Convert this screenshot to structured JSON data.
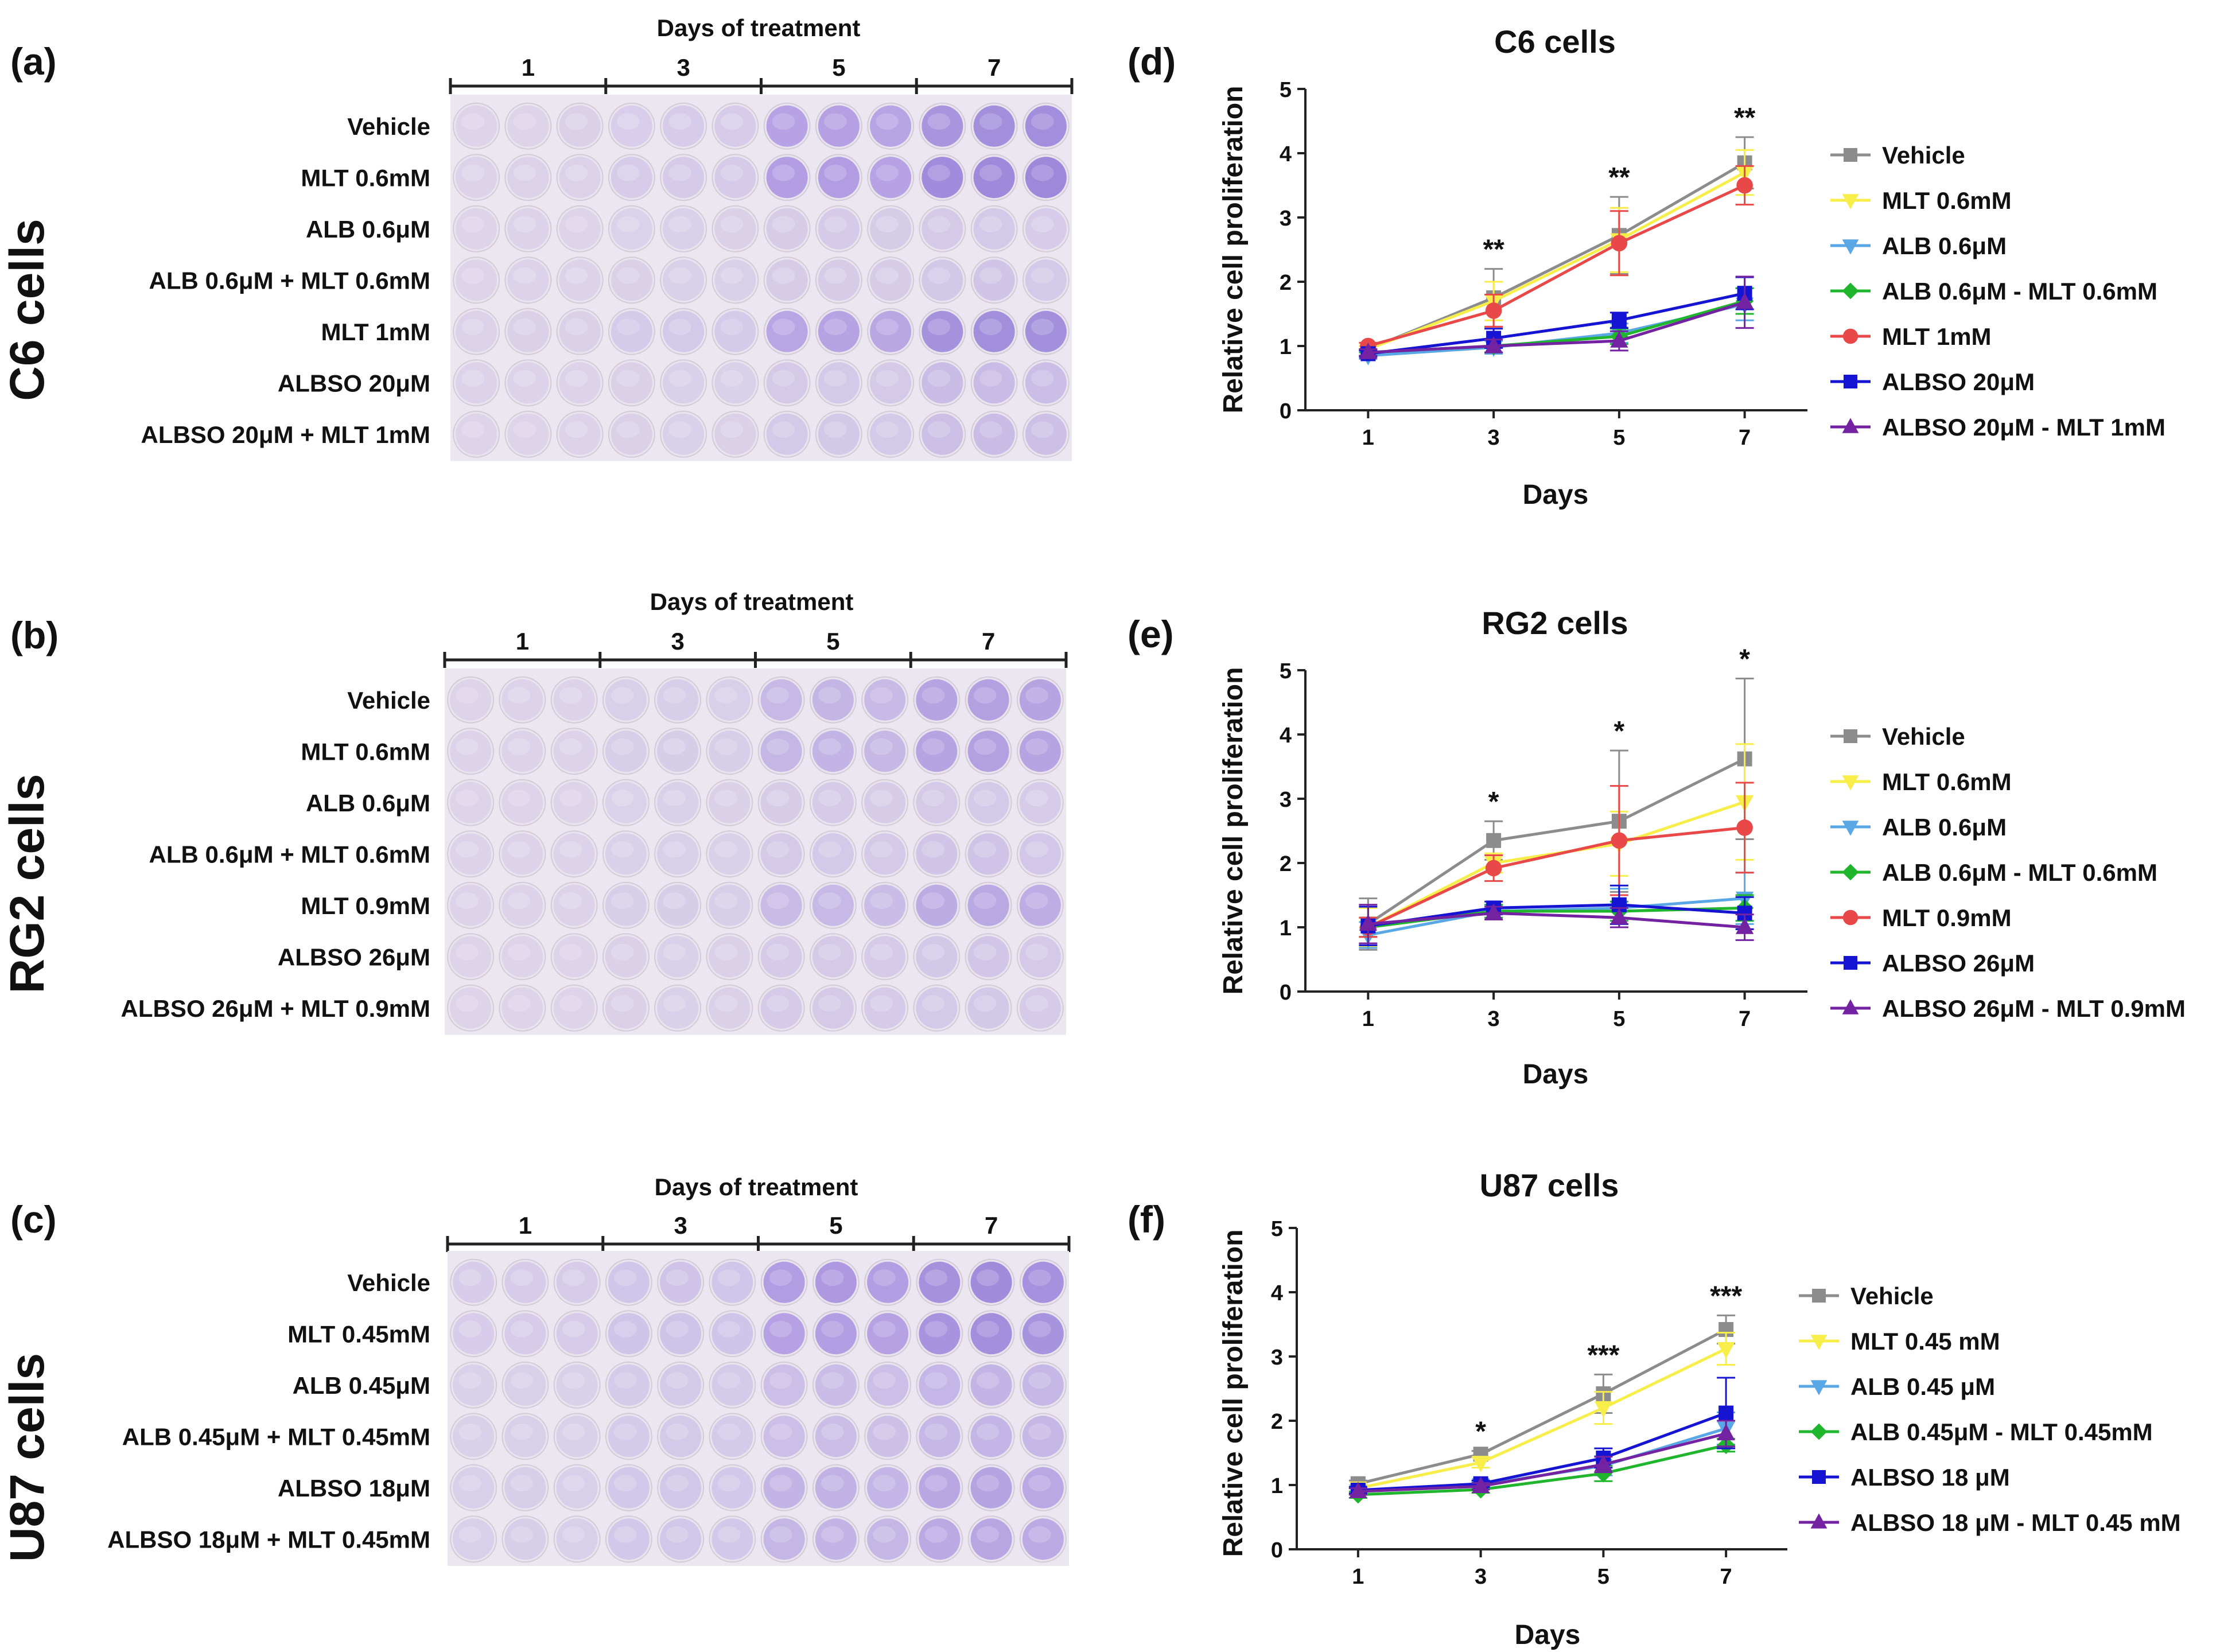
{
  "plates": [
    {
      "panel_label": "(a)",
      "cell_label": "C6 cells",
      "header": "Days of treatment",
      "day_labels": [
        "1",
        "3",
        "5",
        "7"
      ],
      "rows": [
        "Vehicle",
        "MLT 0.6mM",
        "ALB 0.6μM",
        "ALB 0.6μM + MLT 0.6mM",
        "MLT 1mM",
        "ALBSO 20μM",
        "ALBSO 20μM + MLT 1mM"
      ],
      "well_colors": [
        [
          "#ddd4ea",
          "#ddd4ea",
          "#dad0e7",
          "#d8ceec",
          "#d6ccea",
          "#d6ccea",
          "#b6a2e4",
          "#b4a0e2",
          "#b7a4e4",
          "#a995de",
          "#a290dc",
          "#a18edc"
        ],
        [
          "#dcd3ea",
          "#dbd2e9",
          "#dbd2e9",
          "#d6ccea",
          "#d5cbe9",
          "#d5cbe9",
          "#b39ee4",
          "#b29de3",
          "#b6a2e4",
          "#a08bdc",
          "#9e89da",
          "#9d88da"
        ],
        [
          "#ddd4ea",
          "#dcd3ea",
          "#ddd4ea",
          "#dad2ea",
          "#d9d0e9",
          "#dad1e9",
          "#d6cce8",
          "#d5cbe8",
          "#d5cce8",
          "#d4cae8",
          "#d3c9e8",
          "#d6cce9"
        ],
        [
          "#ddd4ea",
          "#dcd3ea",
          "#dcd3ea",
          "#dad1e9",
          "#d9d0e9",
          "#d9d0e9",
          "#d6cce8",
          "#d6cce8",
          "#d6cce8",
          "#d2c8e8",
          "#d0c5e7",
          "#d3c9e8"
        ],
        [
          "#dbd2e9",
          "#dad1e9",
          "#dad1e9",
          "#d4cae9",
          "#d3c9e9",
          "#d4cae9",
          "#b8a6e4",
          "#b6a3e4",
          "#b9a7e4",
          "#a592dd",
          "#a28fdc",
          "#a390dc"
        ],
        [
          "#dcd3ea",
          "#dcd3ea",
          "#dcd3ea",
          "#dad1e9",
          "#d9d0e9",
          "#d9d0e9",
          "#d4cae8",
          "#d3c9e8",
          "#d4cae8",
          "#c9bde6",
          "#c8bbe5",
          "#cabee6"
        ],
        [
          "#ddd4ea",
          "#ddd4ea",
          "#dcd3ea",
          "#dad1e9",
          "#d9d0e9",
          "#dad1e9",
          "#d3c9e8",
          "#d2c8e8",
          "#d3c9e8",
          "#cbbfe6",
          "#c9bde6",
          "#ccc0e7"
        ]
      ]
    },
    {
      "panel_label": "(b)",
      "cell_label": "RG2 cells",
      "header": "Days of treatment",
      "day_labels": [
        "1",
        "3",
        "5",
        "7"
      ],
      "rows": [
        "Vehicle",
        "MLT 0.6mM",
        "ALB 0.6μM",
        "ALB 0.6μM + MLT 0.6mM",
        "MLT 0.9mM",
        "ALBSO 26μM",
        "ALBSO 26μM + MLT 0.9mM"
      ],
      "well_colors": [
        [
          "#ddd4ea",
          "#dcd3ea",
          "#dcd3ea",
          "#d8d0ea",
          "#d7cee9",
          "#d8cfea",
          "#c6b9e6",
          "#c3b6e5",
          "#c7bae6",
          "#b5a3e2",
          "#b3a0e1",
          "#b6a4e2"
        ],
        [
          "#dcd3ea",
          "#dcd3ea",
          "#dcd3ea",
          "#d7ceea",
          "#d6cde9",
          "#d7ceea",
          "#c4b7e5",
          "#c2b5e5",
          "#c5b8e5",
          "#b5a3e2",
          "#b2a0e1",
          "#b6a4e2"
        ],
        [
          "#ddd4ea",
          "#ddd4ea",
          "#ddd4ea",
          "#dad2ea",
          "#d9d0e9",
          "#dad1e9",
          "#d6cce8",
          "#d5cbe8",
          "#d6cce8",
          "#d4cae8",
          "#d3c9e8",
          "#d6cce9"
        ],
        [
          "#dcd3ea",
          "#dcd3ea",
          "#dcd3ea",
          "#d9d0e9",
          "#d8cfe9",
          "#d9d0e9",
          "#d4cae8",
          "#d3c9e8",
          "#d4cae8",
          "#d0c5e7",
          "#cfc4e7",
          "#d2c7e8"
        ],
        [
          "#dcd3ea",
          "#dcd3ea",
          "#dcd3ea",
          "#d7ceea",
          "#d6cde9",
          "#d7ceea",
          "#c8bbe6",
          "#c6b9e6",
          "#c9bce6",
          "#bcace4",
          "#b9a9e3",
          "#bdade4"
        ],
        [
          "#ddd4ea",
          "#ddd4ea",
          "#ddd4ea",
          "#dad1e9",
          "#d9d0e9",
          "#dad1e9",
          "#d5cbe8",
          "#d4cae8",
          "#d5cbe8",
          "#d2c8e8",
          "#d1c6e7",
          "#d4c9e8"
        ],
        [
          "#ddd4ea",
          "#ddd4ea",
          "#ddd4ea",
          "#dad1e9",
          "#d9d0e9",
          "#dad1e9",
          "#d5cbe8",
          "#d4cae8",
          "#d5cbe8",
          "#d3c9e8",
          "#d2c8e8",
          "#d5cbe9"
        ]
      ]
    },
    {
      "panel_label": "(c)",
      "cell_label": "U87 cells",
      "header": "Days of treatment",
      "day_labels": [
        "1",
        "3",
        "5",
        "7"
      ],
      "rows": [
        "Vehicle",
        "MLT 0.45mM",
        "ALB 0.45μM",
        "ALB 0.45μM + MLT 0.45mM",
        "ALBSO 18μM",
        "ALBSO 18μM + MLT 0.45mM"
      ],
      "well_colors": [
        [
          "#d7cdea",
          "#d6cce9",
          "#d6cce9",
          "#d0c6e9",
          "#cfc4e8",
          "#d0c6e9",
          "#b19de2",
          "#ae99e1",
          "#b29ee2",
          "#a691dd",
          "#a18cdb",
          "#a591dd"
        ],
        [
          "#d7cdea",
          "#d6cce9",
          "#d6cce9",
          "#cfc5e9",
          "#cec4e8",
          "#cfc5e9",
          "#b5a1e3",
          "#b29ee2",
          "#b6a2e3",
          "#a793de",
          "#a38fdc",
          "#a794de"
        ],
        [
          "#d9d0ea",
          "#d8cfe9",
          "#d9d0ea",
          "#d4cae9",
          "#d3c9e8",
          "#d4cae9",
          "#cbbee7",
          "#c9bce6",
          "#ccbfe7",
          "#c4b6e6",
          "#c2b4e5",
          "#c5b7e6"
        ],
        [
          "#d9d0ea",
          "#d8cfe9",
          "#d9d0ea",
          "#d4cae9",
          "#d3c9e8",
          "#d4cae9",
          "#ccbfe7",
          "#cabde6",
          "#cdc0e7",
          "#c5b7e6",
          "#c3b5e5",
          "#c6b8e6"
        ],
        [
          "#d8cfea",
          "#d7cee9",
          "#d8cfea",
          "#d2c8e9",
          "#d1c7e8",
          "#d2c8e9",
          "#c2b4e5",
          "#c0b2e4",
          "#c3b5e5",
          "#b8a7e3",
          "#b5a4e2",
          "#b9a8e3"
        ],
        [
          "#d8cfea",
          "#d7cee9",
          "#d8cfea",
          "#d2c8e9",
          "#d1c7e8",
          "#d2c8e9",
          "#c4b6e5",
          "#c2b4e4",
          "#c5b7e5",
          "#baa9e3",
          "#b7a6e2",
          "#bbaae3"
        ]
      ]
    }
  ],
  "chart_data": [
    {
      "panel_label": "(d)",
      "type": "line",
      "title": "C6 cells",
      "xlabel": "Days",
      "ylabel": "Relative cell proliferation",
      "x": [
        1,
        3,
        5,
        7
      ],
      "xticks": [
        "1",
        "3",
        "5",
        "7"
      ],
      "yticks": [
        "0",
        "1",
        "2",
        "3",
        "4",
        "5"
      ],
      "ylim": [
        0,
        5
      ],
      "significance": [
        "",
        "**",
        "**",
        "**"
      ],
      "series": [
        {
          "name": "Vehicle",
          "color": "#8c8c8c",
          "marker": "square",
          "values": [
            0.95,
            1.75,
            2.72,
            3.85
          ],
          "errors": [
            0.05,
            0.45,
            0.6,
            0.4
          ]
        },
        {
          "name": "MLT 0.6mM",
          "color": "#f7ee4a",
          "marker": "triangle-down",
          "values": [
            0.95,
            1.7,
            2.65,
            3.7
          ],
          "errors": [
            0.05,
            0.3,
            0.5,
            0.35
          ]
        },
        {
          "name": "ALB 0.6μM",
          "color": "#5aa7e6",
          "marker": "triangle-down",
          "values": [
            0.85,
            0.98,
            1.2,
            1.65
          ],
          "errors": [
            0.05,
            0.1,
            0.15,
            0.25
          ]
        },
        {
          "name": "ALB 0.6μM - MLT 0.6mM",
          "color": "#1fb52c",
          "marker": "diamond",
          "values": [
            0.9,
            1.0,
            1.15,
            1.7
          ],
          "errors": [
            0.05,
            0.1,
            0.12,
            0.2
          ]
        },
        {
          "name": "MLT 1mM",
          "color": "#e84848",
          "marker": "circle",
          "values": [
            1.0,
            1.55,
            2.6,
            3.5
          ],
          "errors": [
            0.05,
            0.25,
            0.5,
            0.3
          ]
        },
        {
          "name": "ALBSO 20μM",
          "color": "#1414d2",
          "marker": "square",
          "values": [
            0.88,
            1.12,
            1.4,
            1.82
          ],
          "errors": [
            0.05,
            0.15,
            0.12,
            0.25
          ]
        },
        {
          "name": "ALBSO 20μM - MLT 1mM",
          "color": "#7322a2",
          "marker": "triangle",
          "values": [
            0.9,
            1.0,
            1.08,
            1.68
          ],
          "errors": [
            0.05,
            0.1,
            0.15,
            0.4
          ]
        }
      ]
    },
    {
      "panel_label": "(e)",
      "type": "line",
      "title": "RG2 cells",
      "xlabel": "Days",
      "ylabel": "Relative cell proliferation",
      "x": [
        1,
        3,
        5,
        7
      ],
      "xticks": [
        "1",
        "3",
        "5",
        "7"
      ],
      "yticks": [
        "0",
        "1",
        "2",
        "3",
        "4",
        "5"
      ],
      "ylim": [
        0,
        5
      ],
      "significance": [
        "",
        "*",
        "*",
        "*"
      ],
      "series": [
        {
          "name": "Vehicle",
          "color": "#8c8c8c",
          "marker": "square",
          "values": [
            1.05,
            2.35,
            2.65,
            3.62
          ],
          "errors": [
            0.4,
            0.3,
            1.1,
            1.25
          ]
        },
        {
          "name": "MLT 0.6mM",
          "color": "#f7ee4a",
          "marker": "triangle-down",
          "values": [
            1.0,
            2.0,
            2.3,
            2.95
          ],
          "errors": [
            0.3,
            0.15,
            0.5,
            0.9
          ]
        },
        {
          "name": "ALB 0.6μM",
          "color": "#5aa7e6",
          "marker": "triangle-down",
          "values": [
            0.88,
            1.25,
            1.3,
            1.45
          ],
          "errors": [
            0.2,
            0.1,
            0.3,
            0.4
          ]
        },
        {
          "name": "ALB 0.6μM - MLT 0.6mM",
          "color": "#1fb52c",
          "marker": "diamond",
          "values": [
            1.0,
            1.25,
            1.25,
            1.3
          ],
          "errors": [
            0.15,
            0.1,
            0.15,
            0.2
          ]
        },
        {
          "name": "MLT 0.9mM",
          "color": "#e84848",
          "marker": "circle",
          "values": [
            1.0,
            1.92,
            2.35,
            2.55
          ],
          "errors": [
            0.15,
            0.2,
            0.85,
            0.7
          ]
        },
        {
          "name": "ALBSO 26μM",
          "color": "#1414d2",
          "marker": "square",
          "values": [
            1.02,
            1.3,
            1.35,
            1.22
          ],
          "errors": [
            0.3,
            0.1,
            0.3,
            0.25
          ]
        },
        {
          "name": "ALBSO 26μM - MLT 0.9mM",
          "color": "#7322a2",
          "marker": "triangle",
          "values": [
            1.05,
            1.22,
            1.15,
            1.0
          ],
          "errors": [
            0.3,
            0.1,
            0.15,
            0.2
          ]
        }
      ]
    },
    {
      "panel_label": "(f)",
      "type": "line",
      "title": "U87 cells",
      "xlabel": "Days",
      "ylabel": "Relative cell proliferation",
      "x": [
        1,
        3,
        5,
        7
      ],
      "xticks": [
        "1",
        "3",
        "5",
        "7"
      ],
      "yticks": [
        "0",
        "1",
        "2",
        "3",
        "4",
        "5"
      ],
      "ylim": [
        0,
        5
      ],
      "significance": [
        "",
        "*",
        "***",
        "***"
      ],
      "series": [
        {
          "name": "Vehicle",
          "color": "#8c8c8c",
          "marker": "square",
          "values": [
            1.02,
            1.48,
            2.42,
            3.42
          ],
          "errors": [
            0.05,
            0.05,
            0.3,
            0.22
          ]
        },
        {
          "name": "MLT 0.45 mM",
          "color": "#f7ee4a",
          "marker": "triangle-down",
          "values": [
            0.95,
            1.35,
            2.2,
            3.12
          ],
          "errors": [
            0.05,
            0.08,
            0.25,
            0.25
          ]
        },
        {
          "name": "ALB 0.45 μM",
          "color": "#5aa7e6",
          "marker": "triangle-down",
          "values": [
            0.9,
            1.0,
            1.3,
            1.88
          ],
          "errors": [
            0.05,
            0.05,
            0.15,
            0.25
          ]
        },
        {
          "name": "ALB 0.45μM - MLT 0.45mM",
          "color": "#1fb52c",
          "marker": "diamond",
          "values": [
            0.85,
            0.93,
            1.18,
            1.62
          ],
          "errors": [
            0.05,
            0.05,
            0.12,
            0.1
          ]
        },
        {
          "name": "ALBSO 18 μM",
          "color": "#1414d2",
          "marker": "square",
          "values": [
            0.92,
            1.02,
            1.42,
            2.12
          ],
          "errors": [
            0.05,
            0.05,
            0.15,
            0.55
          ]
        },
        {
          "name": "ALBSO 18 μM - MLT 0.45 mM",
          "color": "#7322a2",
          "marker": "triangle",
          "values": [
            0.9,
            0.98,
            1.32,
            1.8
          ],
          "errors": [
            0.05,
            0.05,
            0.12,
            0.2
          ]
        }
      ]
    }
  ]
}
